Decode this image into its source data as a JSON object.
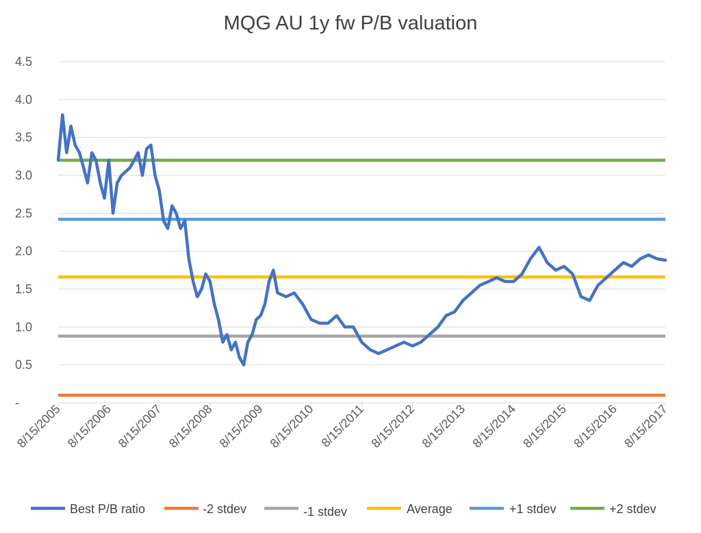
{
  "chart_data": {
    "type": "line",
    "title": "MQG AU 1y fw P/B valuation",
    "xlabel": "",
    "ylabel": "",
    "x_ticks": [
      "8/15/2005",
      "8/15/2006",
      "8/15/2007",
      "8/15/2008",
      "8/15/2009",
      "8/15/2010",
      "8/15/2011",
      "8/15/2012",
      "8/15/2013",
      "8/15/2014",
      "8/15/2015",
      "8/15/2016",
      "8/15/2017"
    ],
    "y_ticks": [
      "-",
      "0.5",
      "1.0",
      "1.5",
      "2.0",
      "2.5",
      "3.0",
      "3.5",
      "4.0",
      "4.5"
    ],
    "xlim": [
      "8/15/2005",
      "8/15/2017"
    ],
    "ylim": [
      0,
      4.5
    ],
    "grid": "horizontal",
    "legend_position": "bottom",
    "series": [
      {
        "name": "Best P/B ratio",
        "color": "#4472C4",
        "x": [
          "2005-08-15",
          "2005-09-15",
          "2005-10-15",
          "2005-11-15",
          "2005-12-15",
          "2006-01-15",
          "2006-02-15",
          "2006-03-15",
          "2006-04-15",
          "2006-05-15",
          "2006-06-15",
          "2006-07-15",
          "2006-08-15",
          "2006-09-15",
          "2006-10-15",
          "2006-11-15",
          "2006-12-15",
          "2007-01-15",
          "2007-02-15",
          "2007-03-15",
          "2007-04-15",
          "2007-05-15",
          "2007-06-15",
          "2007-07-15",
          "2007-08-15",
          "2007-09-15",
          "2007-10-15",
          "2007-11-15",
          "2007-12-15",
          "2008-01-15",
          "2008-02-15",
          "2008-03-15",
          "2008-04-15",
          "2008-05-15",
          "2008-06-15",
          "2008-07-15",
          "2008-08-15",
          "2008-09-15",
          "2008-10-15",
          "2008-11-15",
          "2008-12-15",
          "2009-01-15",
          "2009-02-15",
          "2009-03-15",
          "2009-04-15",
          "2009-05-15",
          "2009-06-15",
          "2009-07-15",
          "2009-08-15",
          "2009-09-15",
          "2009-10-15",
          "2009-11-15",
          "2009-12-15",
          "2010-02-15",
          "2010-04-15",
          "2010-06-15",
          "2010-08-15",
          "2010-10-15",
          "2010-12-15",
          "2011-02-15",
          "2011-04-15",
          "2011-06-15",
          "2011-08-15",
          "2011-10-15",
          "2011-12-15",
          "2012-02-15",
          "2012-04-15",
          "2012-06-15",
          "2012-08-15",
          "2012-10-15",
          "2012-12-15",
          "2013-02-15",
          "2013-04-15",
          "2013-06-15",
          "2013-08-15",
          "2013-10-15",
          "2013-12-15",
          "2014-02-15",
          "2014-04-15",
          "2014-06-15",
          "2014-08-15",
          "2014-10-15",
          "2014-12-15",
          "2015-02-15",
          "2015-04-15",
          "2015-06-15",
          "2015-08-15",
          "2015-10-15",
          "2015-12-15",
          "2016-02-15",
          "2016-04-15",
          "2016-06-15",
          "2016-08-15",
          "2016-10-15",
          "2016-12-15",
          "2017-02-15",
          "2017-04-15",
          "2017-06-15",
          "2017-08-15"
        ],
        "values": [
          3.2,
          3.8,
          3.3,
          3.65,
          3.4,
          3.3,
          3.1,
          2.9,
          3.3,
          3.2,
          2.9,
          2.7,
          3.2,
          2.5,
          2.9,
          3.0,
          3.05,
          3.1,
          3.2,
          3.3,
          3.0,
          3.35,
          3.4,
          3.0,
          2.8,
          2.4,
          2.3,
          2.6,
          2.5,
          2.3,
          2.4,
          1.9,
          1.6,
          1.4,
          1.5,
          1.7,
          1.6,
          1.3,
          1.1,
          0.8,
          0.9,
          0.7,
          0.8,
          0.6,
          0.5,
          0.8,
          0.9,
          1.1,
          1.15,
          1.3,
          1.6,
          1.75,
          1.45,
          1.4,
          1.45,
          1.3,
          1.1,
          1.05,
          1.05,
          1.15,
          1.0,
          1.0,
          0.8,
          0.7,
          0.65,
          0.7,
          0.75,
          0.8,
          0.75,
          0.8,
          0.9,
          1.0,
          1.15,
          1.2,
          1.35,
          1.45,
          1.55,
          1.6,
          1.65,
          1.6,
          1.6,
          1.7,
          1.9,
          2.05,
          1.85,
          1.75,
          1.8,
          1.7,
          1.4,
          1.35,
          1.55,
          1.65,
          1.75,
          1.85,
          1.8,
          1.9,
          1.95,
          1.9,
          1.88
        ]
      },
      {
        "name": "-2 stdev",
        "color": "#ED7D31",
        "value": 0.1
      },
      {
        "name": "-1 stdev",
        "color": "#A5A5A5",
        "value": 0.88
      },
      {
        "name": "Average",
        "color": "#FFC000",
        "value": 1.66
      },
      {
        "name": "+1 stdev",
        "color": "#5B9BD5",
        "value": 2.42
      },
      {
        "name": "+2 stdev",
        "color": "#70AD47",
        "value": 3.2
      }
    ]
  }
}
